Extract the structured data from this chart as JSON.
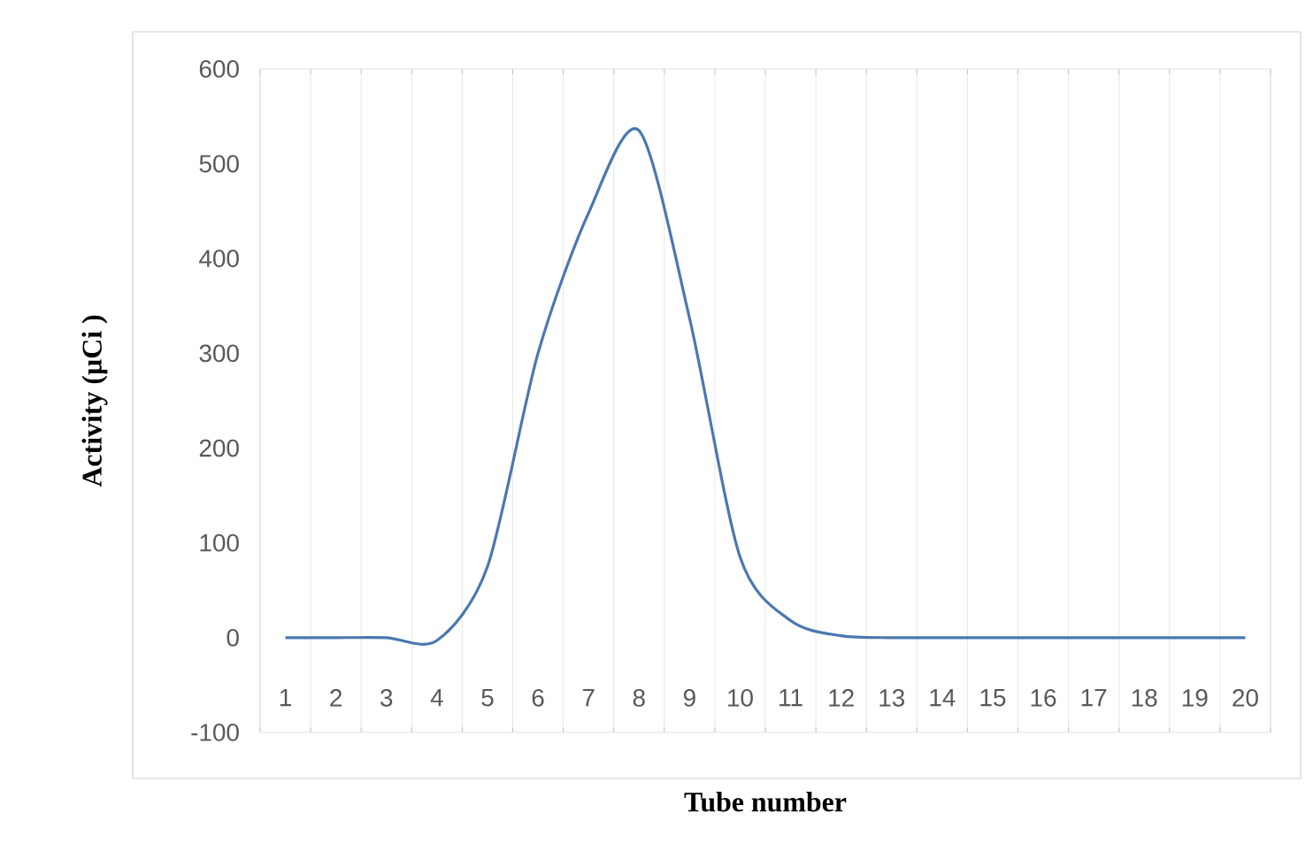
{
  "chart_data": {
    "type": "line",
    "xlabel": "Tube number",
    "ylabel": "Activity (µCi )",
    "categories": [
      "1",
      "2",
      "3",
      "4",
      "5",
      "6",
      "7",
      "8",
      "9",
      "10",
      "11",
      "12",
      "13",
      "14",
      "15",
      "16",
      "17",
      "18",
      "19",
      "20"
    ],
    "series": [
      {
        "color": "#4a78b0",
        "values": [
          0,
          0,
          0,
          -3,
          75,
          300,
          448,
          535,
          337,
          85,
          18,
          2,
          0,
          0,
          0,
          0,
          0,
          0,
          0,
          0
        ]
      }
    ],
    "ylim": [
      -100,
      600
    ],
    "yticks": [
      -100,
      0,
      100,
      200,
      300,
      400,
      500,
      600
    ],
    "grid": "x",
    "marker": "none",
    "line_style": "solid"
  }
}
